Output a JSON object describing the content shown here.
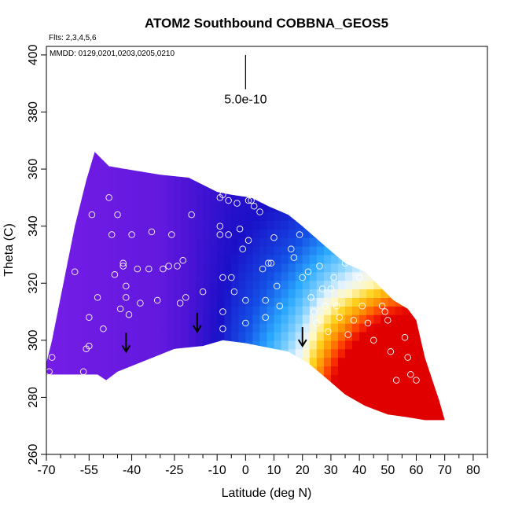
{
  "chart_data": {
    "type": "heatmap",
    "title": "ATOM2 Southbound COBBNA_GEOS5",
    "subtitle_flights": "Flts: 2,3,4,5,6",
    "subtitle_dates": "MMDD: 0129,0201,0203,0205,0210",
    "xlabel": "Latitude (deg N)",
    "ylabel": "Theta (C)",
    "xlim": [
      -70,
      85
    ],
    "ylim": [
      260,
      403
    ],
    "x_ticks": [
      -70,
      -55,
      -40,
      -25,
      -10,
      0,
      10,
      20,
      30,
      40,
      50,
      60,
      70,
      80
    ],
    "x_minor_ticks": [
      -65,
      -60,
      -50,
      -45,
      -35,
      -30,
      -20,
      -15,
      -5,
      5,
      15,
      25,
      35,
      45,
      55,
      65,
      75,
      85
    ],
    "y_ticks": [
      260,
      280,
      300,
      320,
      340,
      360,
      380,
      400
    ],
    "scale_bar": {
      "label": "5.0e-10",
      "x": 0,
      "y_range": [
        388,
        400
      ]
    },
    "colormap": [
      [
        0.0,
        "#7a1ee8"
      ],
      [
        0.18,
        "#4f14d6"
      ],
      [
        0.32,
        "#1a10c8"
      ],
      [
        0.42,
        "#1450e6"
      ],
      [
        0.5,
        "#2aa8ff"
      ],
      [
        0.57,
        "#8ad4ff"
      ],
      [
        0.62,
        "#e8f4ff"
      ],
      [
        0.68,
        "#fff8c0"
      ],
      [
        0.75,
        "#ffd21e"
      ],
      [
        0.84,
        "#ff8a00"
      ],
      [
        0.92,
        "#ff3800"
      ],
      [
        1.0,
        "#e00000"
      ]
    ],
    "field_boundary": {
      "bottom": [
        [
          -70,
          288
        ],
        [
          -52,
          288
        ],
        [
          -49,
          286
        ],
        [
          -45,
          289
        ],
        [
          -40,
          291
        ],
        [
          -25,
          297
        ],
        [
          -15,
          298
        ],
        [
          -8,
          300
        ],
        [
          0,
          299
        ],
        [
          5,
          298
        ],
        [
          15,
          296
        ],
        [
          22,
          292
        ],
        [
          28,
          287
        ],
        [
          35,
          281
        ],
        [
          42,
          277
        ],
        [
          50,
          274
        ],
        [
          57,
          273
        ],
        [
          63,
          272
        ],
        [
          68,
          272
        ],
        [
          70,
          272
        ]
      ],
      "top": [
        [
          -70,
          292
        ],
        [
          -68,
          300
        ],
        [
          -64,
          320
        ],
        [
          -60,
          340
        ],
        [
          -56,
          356
        ],
        [
          -53,
          366
        ],
        [
          -48,
          361
        ],
        [
          -42,
          360
        ],
        [
          -30,
          358
        ],
        [
          -20,
          357
        ],
        [
          -10,
          352
        ],
        [
          -5,
          351
        ],
        [
          2,
          350
        ],
        [
          8,
          347
        ],
        [
          15,
          344
        ],
        [
          20,
          340
        ],
        [
          28,
          333
        ],
        [
          35,
          327
        ],
        [
          42,
          324
        ],
        [
          48,
          318
        ],
        [
          52,
          314
        ],
        [
          57,
          311
        ],
        [
          60,
          307
        ],
        [
          63,
          294
        ],
        [
          66,
          285
        ],
        [
          68,
          279
        ],
        [
          70,
          272
        ]
      ]
    },
    "field_model": {
      "scheme": "normalized colormap value as a function of latitude and theta",
      "lat_breaks": [
        -70,
        -30,
        -5,
        15,
        30,
        50,
        70
      ],
      "base_values": [
        0.02,
        0.1,
        0.32,
        0.42,
        0.52,
        0.62,
        0.7
      ],
      "theta_reference": 330,
      "theta_gradient_per_deg": -0.012,
      "north_enhancement": {
        "lat_start": 20,
        "theta_max": 320,
        "amount": 0.45
      }
    },
    "observations": [
      [
        -69,
        289
      ],
      [
        -68,
        294
      ],
      [
        -60,
        324
      ],
      [
        -57,
        289
      ],
      [
        -56,
        297
      ],
      [
        -55,
        298
      ],
      [
        -55,
        308
      ],
      [
        -54,
        344
      ],
      [
        -52,
        315
      ],
      [
        -50,
        304
      ],
      [
        -48,
        350
      ],
      [
        -47,
        337
      ],
      [
        -46,
        323
      ],
      [
        -45,
        344
      ],
      [
        -44,
        311
      ],
      [
        -43,
        327
      ],
      [
        -43,
        326
      ],
      [
        -42,
        319
      ],
      [
        -42,
        315
      ],
      [
        -41,
        309
      ],
      [
        -40,
        337
      ],
      [
        -38,
        325
      ],
      [
        -37,
        313
      ],
      [
        -34,
        325
      ],
      [
        -33,
        338
      ],
      [
        -31,
        314
      ],
      [
        -29,
        325
      ],
      [
        -27,
        326
      ],
      [
        -26,
        337
      ],
      [
        -24,
        326
      ],
      [
        -23,
        313
      ],
      [
        -22,
        328
      ],
      [
        -21,
        315
      ],
      [
        -19,
        344
      ],
      [
        -15,
        317
      ],
      [
        -9,
        350
      ],
      [
        -9,
        340
      ],
      [
        -9,
        337
      ],
      [
        -8,
        351
      ],
      [
        -8,
        322
      ],
      [
        -8,
        310
      ],
      [
        -8,
        304
      ],
      [
        -6,
        349
      ],
      [
        -6,
        337
      ],
      [
        -5,
        322
      ],
      [
        -4,
        317
      ],
      [
        -3,
        348
      ],
      [
        -2,
        339
      ],
      [
        -1,
        332
      ],
      [
        0,
        314
      ],
      [
        0,
        306
      ],
      [
        1,
        349
      ],
      [
        1,
        335
      ],
      [
        2,
        349
      ],
      [
        3,
        347
      ],
      [
        5,
        345
      ],
      [
        6,
        325
      ],
      [
        7,
        314
      ],
      [
        7,
        308
      ],
      [
        8,
        327
      ],
      [
        9,
        327
      ],
      [
        10,
        336
      ],
      [
        11,
        319
      ],
      [
        12,
        312
      ],
      [
        14,
        348
      ],
      [
        16,
        332
      ],
      [
        17,
        329
      ],
      [
        19,
        337
      ],
      [
        20,
        322
      ],
      [
        22,
        324
      ],
      [
        23,
        315
      ],
      [
        24,
        310
      ],
      [
        25,
        306
      ],
      [
        26,
        326
      ],
      [
        27,
        318
      ],
      [
        28,
        312
      ],
      [
        29,
        303
      ],
      [
        30,
        318
      ],
      [
        31,
        322
      ],
      [
        32,
        312
      ],
      [
        33,
        308
      ],
      [
        35,
        327
      ],
      [
        36,
        302
      ],
      [
        38,
        307
      ],
      [
        40,
        322
      ],
      [
        41,
        312
      ],
      [
        43,
        306
      ],
      [
        45,
        300
      ],
      [
        46,
        323
      ],
      [
        48,
        312
      ],
      [
        49,
        310
      ],
      [
        50,
        307
      ],
      [
        51,
        296
      ],
      [
        53,
        286
      ],
      [
        55,
        316
      ],
      [
        56,
        301
      ],
      [
        57,
        294
      ],
      [
        58,
        288
      ],
      [
        60,
        286
      ]
    ],
    "markers": [
      {
        "x": -42,
        "y": 296
      },
      {
        "x": -17,
        "y": 303
      },
      {
        "x": 20,
        "y": 298
      }
    ]
  }
}
